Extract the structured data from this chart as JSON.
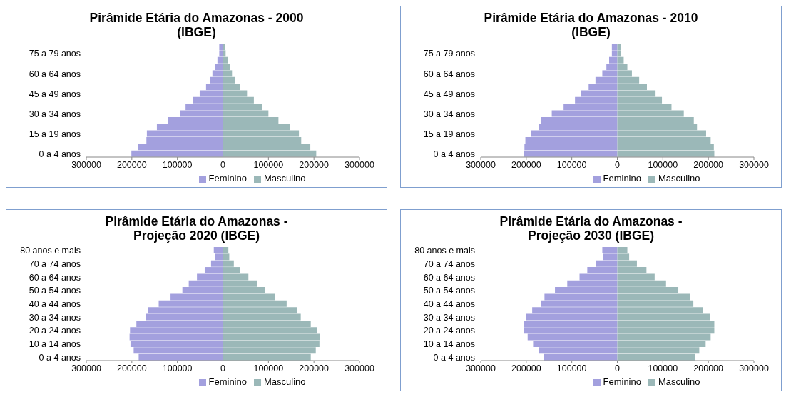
{
  "chart_data": [
    {
      "type": "bar",
      "title": "Pirâmide Etária do Amazonas - 2000 (IBGE)",
      "orientation": "horizontal",
      "stacked": true,
      "legend": "bottom",
      "categories": [
        null,
        "75 a 79 anos",
        null,
        null,
        "60 a 64 anos",
        null,
        null,
        "45 a 49 anos",
        null,
        null,
        "30 a 34 anos",
        null,
        null,
        "15 a 19 anos",
        null,
        null,
        "0 a 4 anos"
      ],
      "xlim": [
        -300000,
        300000
      ],
      "xticks": [
        {
          "value": -300000,
          "label": "300000"
        },
        {
          "value": -200000,
          "label": "200000"
        },
        {
          "value": -100000,
          "label": "100000"
        },
        0,
        100000,
        200000,
        300000
      ],
      "series": [
        {
          "name": "Feminino",
          "color": "#a3a0de",
          "values": [
            -8000,
            -8000,
            -12000,
            -18000,
            -23000,
            -28000,
            -37000,
            -51000,
            -65000,
            -82000,
            -94000,
            -121000,
            -145000,
            -167000,
            -168000,
            -187000,
            -201000
          ]
        },
        {
          "name": "Masculino",
          "color": "#9bb8b8",
          "values": [
            5000,
            6000,
            11000,
            15000,
            20000,
            27000,
            37000,
            53000,
            68000,
            86000,
            100000,
            122000,
            147000,
            167000,
            172000,
            192000,
            205000
          ]
        }
      ]
    },
    {
      "type": "bar",
      "title": "Pirâmide Etária do Amazonas - 2010 (IBGE)",
      "orientation": "horizontal",
      "stacked": true,
      "legend": "bottom",
      "categories": [
        null,
        "75 a 79 anos",
        null,
        null,
        "60 a 64 anos",
        null,
        null,
        "45 a 49 anos",
        null,
        null,
        "30 a 34 anos",
        null,
        null,
        "15 a 19 anos",
        null,
        null,
        "0 a 4 anos"
      ],
      "xlim": [
        -300000,
        300000
      ],
      "xticks": [
        {
          "value": -300000,
          "label": "300000"
        },
        {
          "value": -200000,
          "label": "200000"
        },
        {
          "value": -100000,
          "label": "100000"
        },
        0,
        100000,
        200000,
        300000
      ],
      "series": [
        {
          "name": "Feminino",
          "color": "#a3a0de",
          "values": [
            -12000,
            -12000,
            -18000,
            -24000,
            -33000,
            -48000,
            -63000,
            -80000,
            -93000,
            -118000,
            -144000,
            -168000,
            -172000,
            -190000,
            -202000,
            -204000,
            -205000
          ]
        },
        {
          "name": "Masculino",
          "color": "#9bb8b8",
          "values": [
            7000,
            8000,
            14000,
            22000,
            32000,
            48000,
            65000,
            84000,
            98000,
            119000,
            146000,
            168000,
            175000,
            195000,
            205000,
            212000,
            213000
          ]
        }
      ]
    },
    {
      "type": "bar",
      "title": "Pirâmide Etária do Amazonas - Projeção 2020 (IBGE)",
      "orientation": "horizontal",
      "stacked": true,
      "legend": "bottom",
      "categories": [
        "80 anos e mais",
        null,
        "70 a 74 anos",
        null,
        "60 a 64 anos",
        null,
        "50 a 54 anos",
        null,
        "40 a 44 anos",
        null,
        "30 a 34 anos",
        null,
        "20 a 24 anos",
        null,
        "10 a 14 anos",
        null,
        "0 a 4 anos"
      ],
      "xlim": [
        -300000,
        300000
      ],
      "xticks": [
        {
          "value": -300000,
          "label": "300000"
        },
        {
          "value": -200000,
          "label": "200000"
        },
        {
          "value": -100000,
          "label": "100000"
        },
        0,
        100000,
        200000,
        300000
      ],
      "series": [
        {
          "name": "Feminino",
          "color": "#a3a0de",
          "values": [
            -20000,
            -18000,
            -26000,
            -40000,
            -57000,
            -75000,
            -89000,
            -115000,
            -141000,
            -165000,
            -169000,
            -190000,
            -204000,
            -205000,
            -203000,
            -196000,
            -185000
          ]
        },
        {
          "name": "Masculino",
          "color": "#9bb8b8",
          "values": [
            12000,
            14000,
            24000,
            38000,
            56000,
            75000,
            92000,
            115000,
            140000,
            163000,
            171000,
            193000,
            206000,
            213000,
            212000,
            204000,
            193000
          ]
        }
      ]
    },
    {
      "type": "bar",
      "title": "Pirâmide Etária do Amazonas - Projeção 2030 (IBGE)",
      "orientation": "horizontal",
      "stacked": true,
      "legend": "bottom",
      "categories": [
        "80 anos e mais",
        null,
        "70 a 74 anos",
        null,
        "60 a 64 anos",
        null,
        "50 a 54 anos",
        null,
        "40 a 44 anos",
        null,
        "30 a 34 anos",
        null,
        "20 a 24 anos",
        null,
        "10 a 14 anos",
        null,
        "0 a 4 anos"
      ],
      "xlim": [
        -300000,
        300000
      ],
      "xticks": [
        {
          "value": -300000,
          "label": "300000"
        },
        {
          "value": -200000,
          "label": "200000"
        },
        {
          "value": -100000,
          "label": "100000"
        },
        0,
        100000,
        200000,
        300000
      ],
      "series": [
        {
          "name": "Feminino",
          "color": "#a3a0de",
          "values": [
            -33000,
            -32000,
            -47000,
            -66000,
            -83000,
            -110000,
            -137000,
            -160000,
            -167000,
            -187000,
            -201000,
            -206000,
            -205000,
            -197000,
            -185000,
            -172000,
            -162000
          ]
        },
        {
          "name": "Masculino",
          "color": "#9bb8b8",
          "values": [
            22000,
            26000,
            43000,
            64000,
            82000,
            107000,
            134000,
            160000,
            167000,
            188000,
            203000,
            213000,
            213000,
            205000,
            194000,
            180000,
            170000
          ]
        }
      ]
    }
  ]
}
